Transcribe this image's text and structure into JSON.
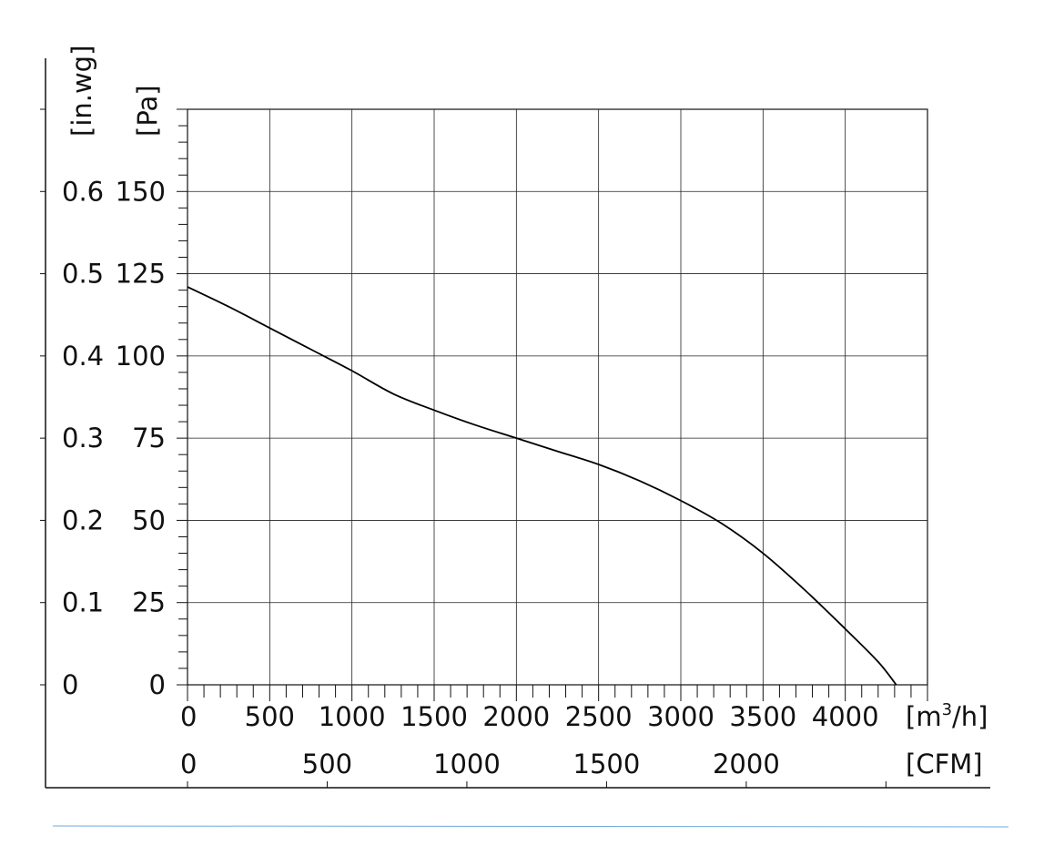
{
  "chart_data": {
    "type": "line",
    "title": "",
    "x_unit_primary": "[m3/h]",
    "x_unit_primary_base": "[m",
    "x_unit_primary_sup": "3",
    "x_unit_primary_tail": "/h]",
    "x_unit_secondary": "[CFM]",
    "y_unit_primary": "[Pa]",
    "y_unit_secondary": "[in.wg]",
    "xlim": [
      0,
      4500
    ],
    "ylim": [
      0,
      175
    ],
    "x_ticks_primary": [
      0,
      500,
      1000,
      1500,
      2000,
      2500,
      3000,
      3500,
      4000
    ],
    "x_ticks_secondary": [
      0,
      500,
      1000,
      1500,
      2000
    ],
    "y_ticks_primary": [
      0,
      25,
      50,
      75,
      100,
      125,
      150
    ],
    "y_ticks_secondary": [
      "0",
      "0.1",
      "0.2",
      "0.3",
      "0.4",
      "0.5",
      "0.6"
    ],
    "cfm_per_m3h": 0.5886,
    "grid": true,
    "series": [
      {
        "x": [
          0,
          250,
          500,
          750,
          1000,
          1250,
          1500,
          1750,
          2000,
          2250,
          2500,
          2750,
          3000,
          3250,
          3500,
          3750,
          4000,
          4200,
          4310
        ],
        "y": [
          121,
          115,
          108.5,
          102,
          95.5,
          88.5,
          83.5,
          79,
          75,
          71,
          67,
          62,
          56,
          49,
          40,
          29,
          17,
          7,
          0
        ]
      }
    ]
  }
}
